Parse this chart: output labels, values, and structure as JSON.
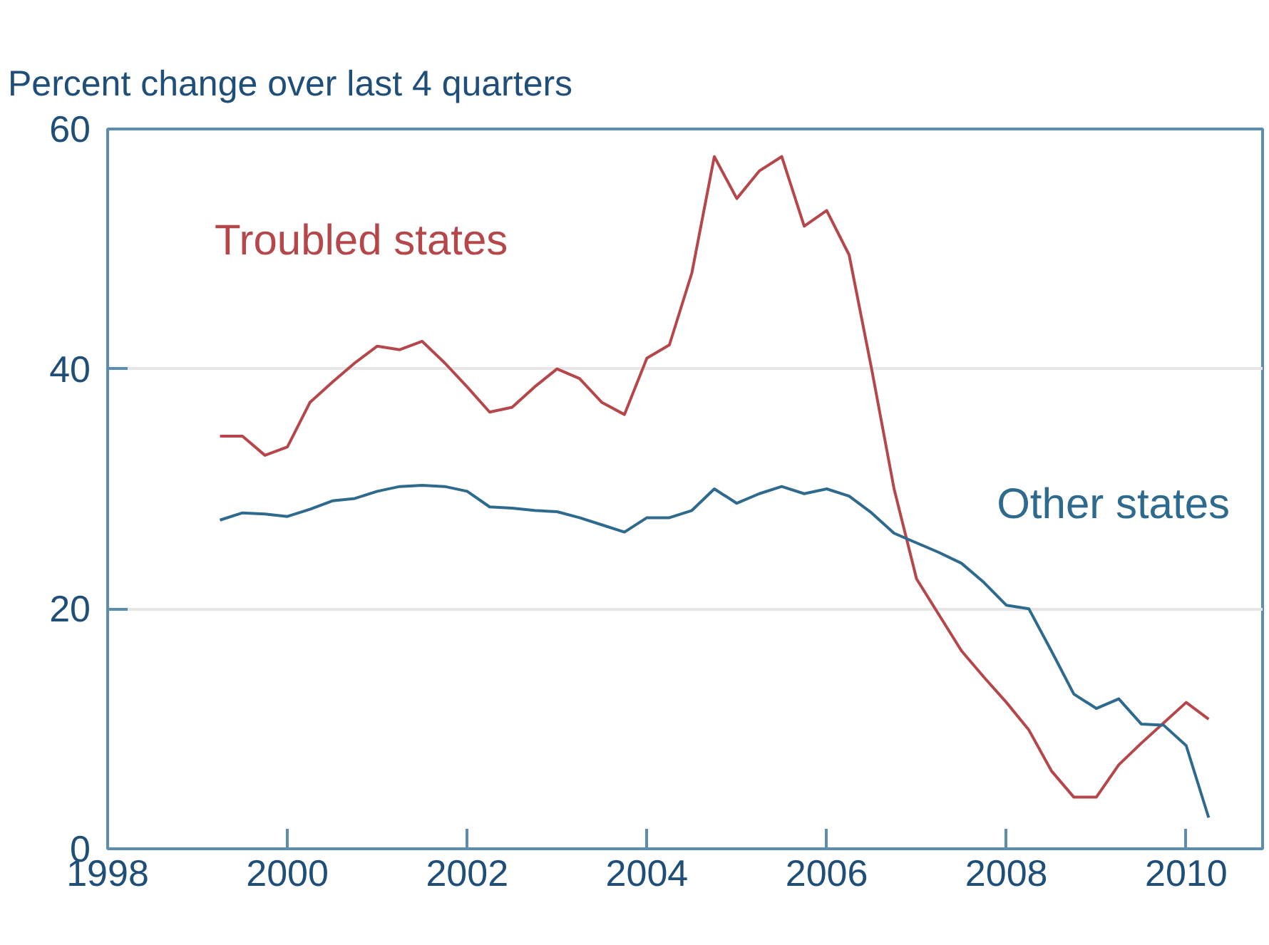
{
  "chart_data": {
    "type": "line",
    "title": "Percent change over last 4 quarters",
    "x": [
      1999.25,
      1999.5,
      1999.75,
      2000.0,
      2000.25,
      2000.5,
      2000.75,
      2001.0,
      2001.25,
      2001.5,
      2001.75,
      2002.0,
      2002.25,
      2002.5,
      2002.75,
      2003.0,
      2003.25,
      2003.5,
      2003.75,
      2004.0,
      2004.25,
      2004.5,
      2004.75,
      2005.0,
      2005.25,
      2005.5,
      2005.75,
      2006.0,
      2006.25,
      2006.5,
      2006.75,
      2007.0,
      2007.25,
      2007.5,
      2007.75,
      2008.0,
      2008.25,
      2008.5,
      2008.75,
      2009.0,
      2009.25,
      2009.5,
      2009.75,
      2010.0,
      2010.25
    ],
    "series": [
      {
        "name": "Troubled states",
        "color": "#b5474b",
        "values": [
          34.4,
          34.4,
          32.8,
          33.5,
          37.2,
          38.9,
          40.5,
          41.9,
          41.6,
          42.3,
          40.5,
          38.5,
          36.4,
          36.8,
          38.5,
          40.0,
          39.2,
          37.2,
          36.2,
          40.9,
          42.0,
          48.0,
          57.7,
          54.2,
          56.5,
          57.7,
          51.9,
          53.2,
          49.5,
          40.0,
          30.0,
          22.5,
          19.5,
          16.5,
          14.3,
          12.2,
          9.9,
          6.5,
          4.3,
          4.3,
          7.0,
          8.8,
          10.5,
          12.2,
          10.8
        ]
      },
      {
        "name": "Other states",
        "color": "#2e6a8e",
        "values": [
          27.4,
          28.0,
          27.9,
          27.7,
          28.3,
          29.0,
          29.2,
          29.8,
          30.2,
          30.3,
          30.2,
          29.8,
          28.5,
          28.4,
          28.2,
          28.1,
          27.6,
          27.0,
          26.4,
          27.6,
          27.6,
          28.2,
          30.0,
          28.8,
          29.6,
          30.2,
          29.6,
          30.0,
          29.4,
          28.0,
          26.3,
          25.5,
          24.7,
          23.8,
          22.2,
          20.3,
          20.0,
          16.5,
          12.9,
          11.7,
          12.5,
          10.4,
          10.3,
          8.6,
          2.6
        ]
      }
    ],
    "xlim": [
      1998,
      2010.85
    ],
    "ylim": [
      0,
      60
    ],
    "xticks": [
      1998,
      2000,
      2002,
      2004,
      2006,
      2008,
      2010
    ],
    "yticks": [
      0,
      20,
      40,
      60
    ],
    "grid": "y"
  }
}
